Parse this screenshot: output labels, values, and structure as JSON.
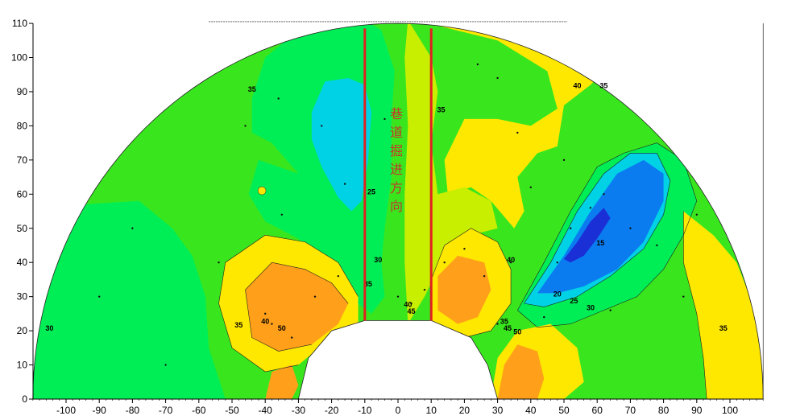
{
  "chart_data": {
    "type": "heatmap",
    "title": "",
    "xlabel": "",
    "ylabel": "",
    "xlim": [
      -110,
      110
    ],
    "ylim": [
      0,
      110
    ],
    "x_ticks": [
      -100,
      -90,
      -80,
      -70,
      -60,
      -50,
      -40,
      -30,
      -20,
      -10,
      0,
      10,
      20,
      30,
      40,
      50,
      60,
      70,
      80,
      90,
      100
    ],
    "y_ticks": [
      0,
      10,
      20,
      30,
      40,
      50,
      60,
      70,
      80,
      90,
      100,
      110
    ],
    "levels": [
      15,
      20,
      25,
      30,
      35,
      40,
      45,
      50
    ],
    "level_colors": {
      "15": "#1a2fd6",
      "20": "#0a7cf0",
      "25": "#00d2e6",
      "30": "#00ee55",
      "35": "#39e61e",
      "40": "#c8ee00",
      "45": "#ffe800",
      "50": "#ff9f1a"
    },
    "contour_labels": [
      {
        "x": -105,
        "y": 20,
        "value": "30"
      },
      {
        "x": -48,
        "y": 21,
        "value": "35"
      },
      {
        "x": -40,
        "y": 22,
        "value": "40"
      },
      {
        "x": -35,
        "y": 20,
        "value": "50"
      },
      {
        "x": -44,
        "y": 90,
        "value": "35"
      },
      {
        "x": -8,
        "y": 60,
        "value": "25"
      },
      {
        "x": -6,
        "y": 40,
        "value": "30"
      },
      {
        "x": -9,
        "y": 33,
        "value": "35"
      },
      {
        "x": 3,
        "y": 27,
        "value": "40"
      },
      {
        "x": 4,
        "y": 25,
        "value": "45"
      },
      {
        "x": 13,
        "y": 84,
        "value": "35"
      },
      {
        "x": 34,
        "y": 40,
        "value": "40"
      },
      {
        "x": 32,
        "y": 22,
        "value": "35"
      },
      {
        "x": 33,
        "y": 20,
        "value": "45"
      },
      {
        "x": 36,
        "y": 19,
        "value": "50"
      },
      {
        "x": 48,
        "y": 30,
        "value": "20"
      },
      {
        "x": 53,
        "y": 28,
        "value": "25"
      },
      {
        "x": 58,
        "y": 26,
        "value": "30"
      },
      {
        "x": 61,
        "y": 45,
        "value": "15"
      },
      {
        "x": 54,
        "y": 91,
        "value": "40"
      },
      {
        "x": 62,
        "y": 91,
        "value": "35"
      },
      {
        "x": 98,
        "y": 20,
        "value": "35"
      }
    ],
    "annotation": {
      "text": "巷道掘进方向",
      "lines_x": [
        -10,
        10
      ]
    },
    "grid": false,
    "legend": "none"
  }
}
